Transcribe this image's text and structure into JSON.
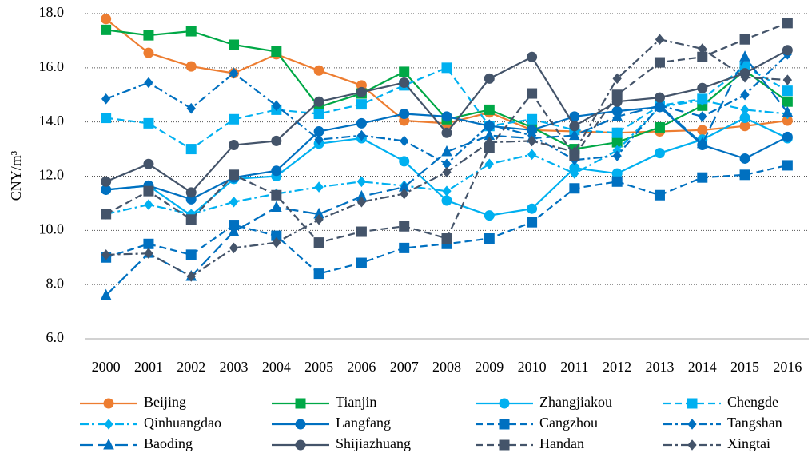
{
  "chart_data": {
    "type": "line",
    "y_label": "CNY/m³",
    "categories": [
      "2000",
      "2001",
      "2002",
      "2003",
      "2004",
      "2005",
      "2006",
      "2007",
      "2008",
      "2009",
      "2010",
      "2011",
      "2012",
      "2013",
      "2014",
      "2015",
      "2016"
    ],
    "ylim": [
      6,
      18
    ],
    "yticks": [
      {
        "value": 6,
        "label": "6.0"
      },
      {
        "value": 8,
        "label": "8.0"
      },
      {
        "value": 10,
        "label": "10.0"
      },
      {
        "value": 12,
        "label": "12.0"
      },
      {
        "value": 14,
        "label": "14.0"
      },
      {
        "value": 16,
        "label": "16.0"
      },
      {
        "value": 18,
        "label": "18.0"
      }
    ],
    "grid": true,
    "legend": "bottom",
    "series": [
      {
        "name": "Beijing",
        "color": "#ed7d31",
        "marker": "circle",
        "dash": "solid",
        "values": [
          17.8,
          16.55,
          16.05,
          15.8,
          16.5,
          15.9,
          15.35,
          14.05,
          13.95,
          14.35,
          13.7,
          13.65,
          13.6,
          13.65,
          13.7,
          13.85,
          14.05
        ]
      },
      {
        "name": "Tianjin",
        "color": "#00a846",
        "marker": "square",
        "dash": "solid",
        "values": [
          17.4,
          17.2,
          17.35,
          16.85,
          16.6,
          14.55,
          15.05,
          15.85,
          14.1,
          14.45,
          13.8,
          13.0,
          13.25,
          13.8,
          14.6,
          15.9,
          14.75
        ]
      },
      {
        "name": "Zhangjiakou",
        "color": "#00b0f0",
        "marker": "circle",
        "dash": "solid",
        "values": [
          11.5,
          11.65,
          10.55,
          11.9,
          12.0,
          13.2,
          13.4,
          12.55,
          11.1,
          10.55,
          10.8,
          12.3,
          12.1,
          12.85,
          13.35,
          14.15,
          13.4
        ]
      },
      {
        "name": "Chengde",
        "color": "#00b0f0",
        "marker": "square",
        "dash": "dash",
        "values": [
          14.15,
          13.95,
          13.0,
          14.1,
          14.45,
          14.3,
          14.65,
          15.35,
          16.0,
          13.85,
          14.1,
          13.7,
          13.6,
          14.6,
          14.85,
          16.05,
          15.15
        ]
      },
      {
        "name": "Qinhuangdao",
        "color": "#00b0f0",
        "marker": "diamond",
        "dash": "dashdot",
        "values": [
          10.6,
          10.95,
          10.6,
          11.05,
          11.35,
          11.6,
          11.8,
          11.65,
          11.45,
          12.45,
          12.8,
          12.1,
          12.95,
          14.55,
          14.8,
          14.45,
          14.3
        ]
      },
      {
        "name": "Langfang",
        "color": "#0070c0",
        "marker": "circle",
        "dash": "solid",
        "values": [
          11.5,
          11.65,
          11.15,
          11.95,
          12.2,
          13.65,
          13.95,
          14.3,
          14.2,
          13.85,
          13.7,
          14.2,
          14.4,
          14.55,
          13.15,
          12.65,
          13.45
        ]
      },
      {
        "name": "Cangzhou",
        "color": "#0070c0",
        "marker": "square",
        "dash": "dash",
        "values": [
          9.0,
          9.5,
          9.1,
          10.2,
          9.8,
          8.4,
          8.8,
          9.35,
          9.5,
          9.7,
          10.3,
          11.55,
          11.8,
          11.3,
          11.95,
          12.05,
          12.4
        ]
      },
      {
        "name": "Tangshan",
        "color": "#0070c0",
        "marker": "diamond",
        "dash": "dashdot",
        "values": [
          14.85,
          15.45,
          14.5,
          15.8,
          14.6,
          13.35,
          13.5,
          13.3,
          12.45,
          13.9,
          13.5,
          12.6,
          12.75,
          14.6,
          14.2,
          15.0,
          16.5
        ]
      },
      {
        "name": "Baoding",
        "color": "#0070c0",
        "marker": "triangle",
        "dash": "longdash",
        "values": [
          7.6,
          9.15,
          8.3,
          9.95,
          10.85,
          10.6,
          11.25,
          11.6,
          12.9,
          13.5,
          13.4,
          13.5,
          14.2,
          14.6,
          13.2,
          16.4,
          14.35
        ]
      },
      {
        "name": "Shijiazhuang",
        "color": "#44546a",
        "marker": "circle",
        "dash": "solid",
        "values": [
          11.8,
          12.45,
          11.4,
          13.15,
          13.3,
          14.75,
          15.1,
          15.45,
          13.6,
          15.6,
          16.4,
          13.85,
          14.75,
          14.9,
          15.25,
          15.8,
          16.65
        ]
      },
      {
        "name": "Handan",
        "color": "#44546a",
        "marker": "square",
        "dash": "dash",
        "values": [
          10.6,
          11.45,
          10.4,
          12.05,
          11.3,
          9.55,
          9.95,
          10.15,
          9.7,
          13.05,
          15.05,
          12.75,
          15.0,
          16.2,
          16.4,
          17.05,
          17.65
        ]
      },
      {
        "name": "Xingtai",
        "color": "#44546a",
        "marker": "diamond",
        "dash": "dashdot",
        "values": [
          9.1,
          9.15,
          8.3,
          9.35,
          9.55,
          10.4,
          11.05,
          11.35,
          12.15,
          13.25,
          13.3,
          12.9,
          15.6,
          17.05,
          16.7,
          15.65,
          15.55
        ]
      }
    ]
  }
}
